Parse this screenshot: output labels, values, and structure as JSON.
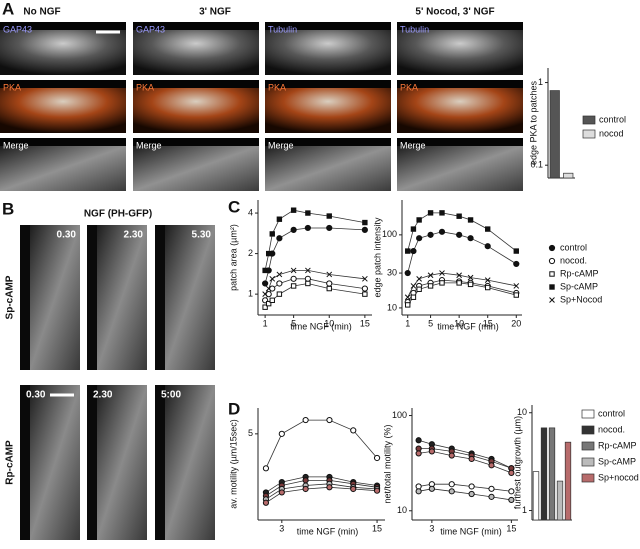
{
  "panel_a": {
    "letter": "A",
    "columns": [
      "No NGF",
      "3' NGF",
      "5' Nocod, 3' NGF"
    ],
    "labels": [
      [
        "GAP43",
        "GAP43",
        "Tubulin",
        "Tubulin"
      ],
      [
        "PKA",
        "PKA",
        "PKA",
        "PKA"
      ],
      [
        "Merge",
        "Merge",
        "Merge",
        "Merge"
      ]
    ]
  },
  "panel_b": {
    "letter": "B",
    "title": "NGF (PH-GFP)",
    "rows": [
      {
        "name": "Sp-cAMP",
        "times": [
          "0.30",
          "2.30",
          "5.30"
        ]
      },
      {
        "name": "Rp-cAMP",
        "times": [
          "0.30",
          "2.30",
          "5:00"
        ]
      }
    ]
  },
  "panel_c": {
    "letter": "C"
  },
  "panel_d": {
    "letter": "D"
  },
  "chart_data": [
    {
      "type": "bar",
      "ylabel": "edge PKA to patches",
      "log_y": true,
      "ylim": [
        0.07,
        1.5
      ],
      "yticks": [
        0.1,
        1
      ],
      "categories": [
        "control",
        "nocod"
      ],
      "values": [
        0.8,
        0.08
      ],
      "colors": [
        "#555555",
        "#dddddd"
      ],
      "legend": "right"
    },
    {
      "type": "line",
      "ylabel": "patch  area (µm²)",
      "xlabel": "time NGF (min)",
      "log_y": true,
      "ylim": [
        0.7,
        5
      ],
      "yticks": [
        1,
        2,
        4
      ],
      "xlim": [
        0,
        16
      ],
      "xticks": [
        1,
        5,
        10,
        15
      ],
      "x": [
        1,
        1.5,
        2,
        3,
        5,
        7,
        10,
        15
      ],
      "series": [
        {
          "marker": "filled-circle",
          "color": "#111111",
          "values": [
            1.2,
            1.5,
            2,
            2.6,
            3.0,
            3.1,
            3.1,
            3.0
          ]
        },
        {
          "marker": "open-circle",
          "color": "#111111",
          "values": [
            0.9,
            1.0,
            1.1,
            1.2,
            1.3,
            1.3,
            1.2,
            1.1
          ]
        },
        {
          "marker": "open-square",
          "color": "#111111",
          "values": [
            0.8,
            0.85,
            0.9,
            1.0,
            1.15,
            1.2,
            1.1,
            1.0
          ]
        },
        {
          "marker": "filled-square",
          "color": "#111111",
          "values": [
            1.5,
            2,
            2.8,
            3.6,
            4.2,
            4.0,
            3.8,
            3.4
          ]
        },
        {
          "marker": "x",
          "color": "#111111",
          "values": [
            1.0,
            1.1,
            1.3,
            1.4,
            1.5,
            1.5,
            1.4,
            1.3
          ]
        }
      ]
    },
    {
      "type": "line",
      "ylabel": "edge patch intensity",
      "xlabel": "time NGF (min)",
      "log_y": true,
      "ylim": [
        8,
        300
      ],
      "yticks": [
        10,
        30,
        100
      ],
      "xlim": [
        0,
        21
      ],
      "xticks": [
        1,
        5,
        10,
        15,
        20
      ],
      "x": [
        1,
        2,
        3,
        5,
        7,
        10,
        12,
        15,
        20
      ],
      "legend": "right",
      "series": [
        {
          "name": "control",
          "marker": "filled-circle",
          "color": "#111111",
          "values": [
            30,
            60,
            90,
            100,
            110,
            100,
            90,
            70,
            40
          ]
        },
        {
          "name": "nocod.",
          "marker": "open-circle",
          "color": "#111111",
          "values": [
            12,
            16,
            20,
            22,
            24,
            23,
            22,
            20,
            16
          ]
        },
        {
          "name": "Rp-cAMP",
          "marker": "open-square",
          "color": "#111111",
          "values": [
            11,
            14,
            18,
            20,
            22,
            22,
            21,
            19,
            15
          ]
        },
        {
          "name": "Sp-cAMP",
          "marker": "filled-square",
          "color": "#111111",
          "values": [
            60,
            120,
            160,
            200,
            200,
            180,
            160,
            120,
            60
          ]
        },
        {
          "name": "Sp+Nocod",
          "marker": "x",
          "color": "#111111",
          "values": [
            14,
            20,
            25,
            28,
            30,
            28,
            26,
            24,
            20
          ]
        }
      ]
    },
    {
      "type": "line",
      "ylabel": "av. motility (µm/15sec)",
      "xlabel": "time NGF (min)",
      "log_y": false,
      "ylim": [
        0,
        6.5
      ],
      "yticks": [
        5
      ],
      "xlim": [
        0,
        16
      ],
      "xticks": [
        3,
        15
      ],
      "x": [
        1,
        3,
        6,
        9,
        12,
        15
      ],
      "series": [
        {
          "marker": "open-circle",
          "color": "#ffffff",
          "values": [
            3,
            5,
            5.8,
            5.8,
            5.2,
            3.6
          ]
        },
        {
          "marker": "open-circle",
          "color": "#222222",
          "values": [
            1.6,
            2.2,
            2.5,
            2.5,
            2.2,
            2.0
          ]
        },
        {
          "marker": "open-circle",
          "color": "#7a3a3a",
          "values": [
            1.4,
            2.0,
            2.3,
            2.3,
            2.1,
            1.9
          ]
        },
        {
          "marker": "open-circle",
          "color": "#bbbbbb",
          "values": [
            1.2,
            1.8,
            2.0,
            2.1,
            1.9,
            1.8
          ]
        },
        {
          "marker": "open-circle",
          "color": "#b76b6b",
          "values": [
            1.0,
            1.6,
            1.8,
            1.9,
            1.8,
            1.7
          ]
        }
      ]
    },
    {
      "type": "line",
      "ylabel": "net/total motility (%)",
      "xlabel": "time NGF (min)",
      "log_y": true,
      "ylim": [
        8,
        120
      ],
      "yticks": [
        10,
        100
      ],
      "xlim": [
        0,
        16
      ],
      "xticks": [
        3,
        15
      ],
      "x": [
        1,
        3,
        6,
        9,
        12,
        15
      ],
      "series": [
        {
          "marker": "open-circle",
          "color": "#ffffff",
          "values": [
            18,
            19,
            19,
            18,
            17,
            16
          ]
        },
        {
          "marker": "open-circle",
          "color": "#222222",
          "values": [
            55,
            50,
            45,
            40,
            35,
            28
          ]
        },
        {
          "marker": "open-circle",
          "color": "#7a3a3a",
          "values": [
            45,
            45,
            42,
            38,
            33,
            28
          ]
        },
        {
          "marker": "open-circle",
          "color": "#bbbbbb",
          "values": [
            16,
            17,
            16,
            15,
            14,
            13
          ]
        },
        {
          "marker": "open-circle",
          "color": "#b76b6b",
          "values": [
            40,
            42,
            38,
            35,
            30,
            25
          ]
        }
      ]
    },
    {
      "type": "bar",
      "ylabel": "furthest outgrowth (µm)",
      "log_y": true,
      "ylim": [
        0.8,
        12
      ],
      "yticks": [
        1,
        10
      ],
      "categories": [
        "control",
        "nocod.",
        "Rp-cAMP",
        "Sp-cAMP",
        "Sp+nocod"
      ],
      "values": [
        2.5,
        7,
        7,
        2,
        5
      ],
      "colors": [
        "#ffffff",
        "#333333",
        "#777777",
        "#bbbbbb",
        "#b76b6b"
      ],
      "legend": "right"
    }
  ]
}
